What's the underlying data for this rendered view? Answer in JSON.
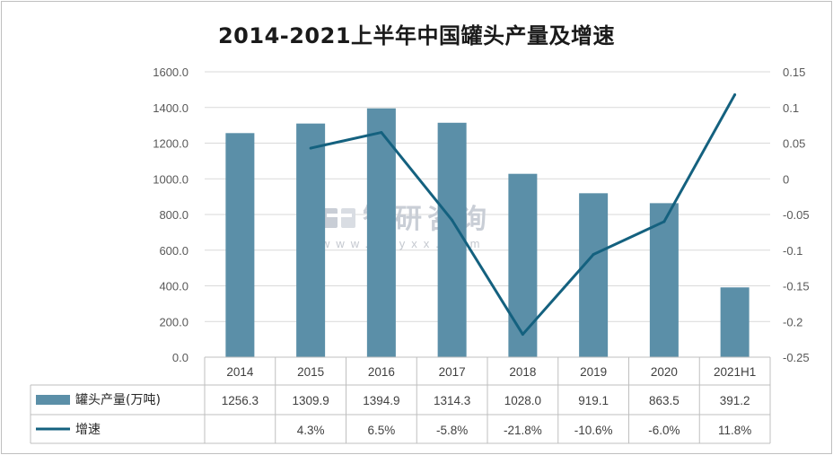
{
  "chart_data": {
    "type": "bar",
    "title": "2014-2021上半年中国罐头产量及增速",
    "categories": [
      "2014",
      "2015",
      "2016",
      "2017",
      "2018",
      "2019",
      "2020",
      "2021H1"
    ],
    "series": [
      {
        "name": "罐头产量(万吨)",
        "type": "bar",
        "axis": "left",
        "color": "#5b8fa8",
        "values": [
          1256.3,
          1309.9,
          1394.9,
          1314.3,
          1028.0,
          919.1,
          863.5,
          391.2
        ],
        "table_labels": [
          "1256.3",
          "1309.9",
          "1394.9",
          "1314.3",
          "1028.0",
          "919.1",
          "863.5",
          "391.2"
        ]
      },
      {
        "name": "增速",
        "type": "line",
        "axis": "right",
        "color": "#14617f",
        "values": [
          null,
          0.043,
          0.065,
          -0.058,
          -0.218,
          -0.106,
          -0.06,
          0.118
        ],
        "table_labels": [
          "",
          "4.3%",
          "6.5%",
          "-5.8%",
          "-21.8%",
          "-10.6%",
          "-6.0%",
          "11.8%"
        ]
      }
    ],
    "y_left": {
      "min": 0,
      "max": 1600,
      "ticks": [
        "0.0",
        "200.0",
        "400.0",
        "600.0",
        "800.0",
        "1000.0",
        "1200.0",
        "1400.0",
        "1600.0"
      ]
    },
    "y_right": {
      "min": -0.25,
      "max": 0.15,
      "ticks": [
        "-0.25",
        "-0.2",
        "-0.15",
        "-0.1",
        "-0.05",
        "0",
        "0.05",
        "0.1",
        "0.15"
      ]
    },
    "grid": true,
    "legend": "data-table"
  },
  "watermark": {
    "text": "智研咨询",
    "url": "www.chyxx.com"
  }
}
